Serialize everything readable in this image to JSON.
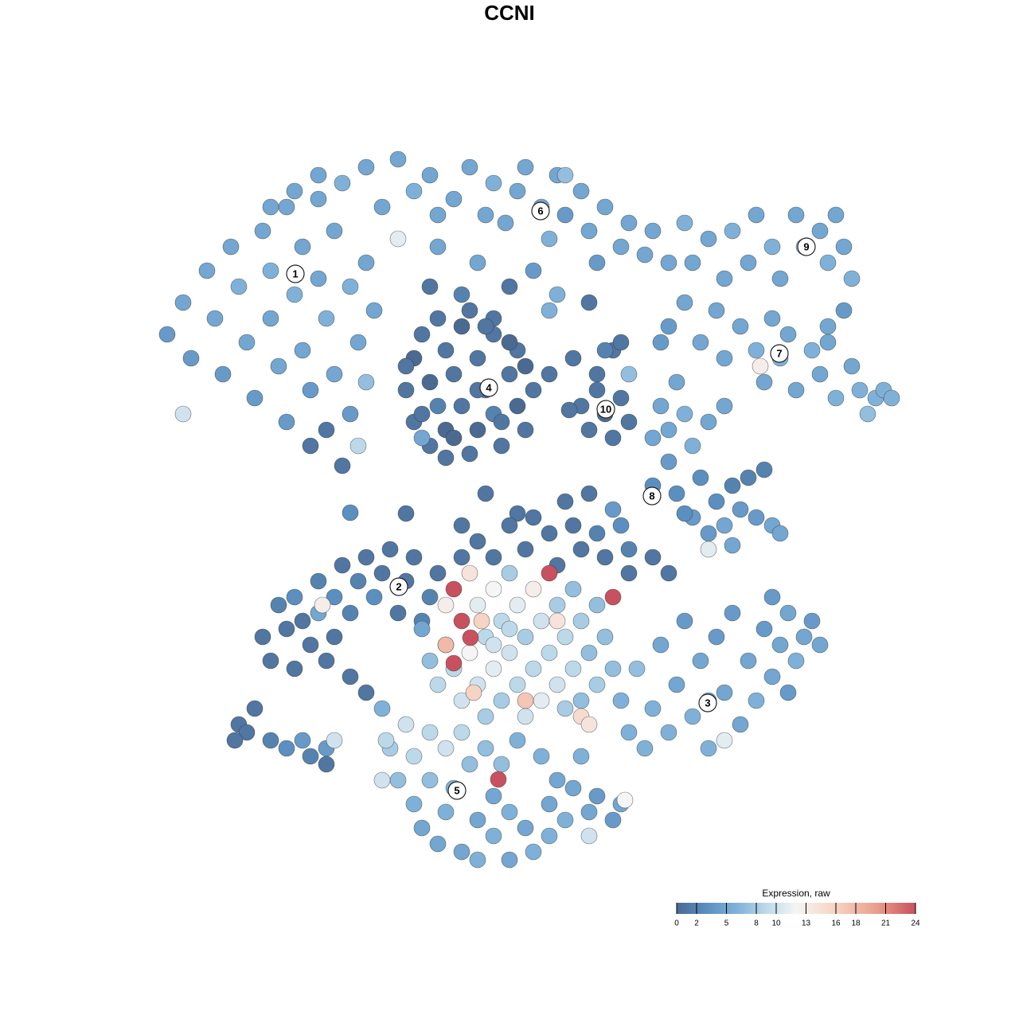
{
  "chart_data": {
    "type": "scatter",
    "title": "CCNI",
    "x": [
      -43,
      -41,
      -40,
      -38,
      -37,
      -36,
      -35,
      -34,
      -33,
      -32,
      -31,
      -30,
      -30,
      -29,
      -28,
      -28,
      -27,
      -26,
      -26,
      -25,
      -25,
      -24,
      -24,
      -23,
      -23,
      -22,
      -22,
      -21,
      -20,
      -20,
      -19,
      -19,
      -18,
      -18,
      -17,
      -41,
      -30,
      -27,
      -24,
      -21,
      -18,
      -16,
      -14,
      -12,
      -10,
      -9,
      -7,
      -5,
      -3,
      -2,
      -0.5,
      1,
      2,
      4,
      5,
      6,
      7,
      9,
      10,
      11,
      12,
      14,
      15,
      17,
      18,
      20,
      -14,
      7,
      -9,
      3,
      -4,
      6,
      5,
      -6,
      -10,
      0,
      10,
      -2,
      -13,
      -12,
      -12,
      -11,
      -10,
      -10,
      -9,
      -8,
      -8,
      -7,
      -6,
      -6,
      -5,
      -4,
      -4,
      -3,
      -2,
      -2,
      -1,
      0,
      1,
      1,
      2,
      -11,
      -8,
      3,
      -5,
      5,
      8,
      11,
      13,
      -13,
      -9,
      -7,
      -3,
      -1,
      2,
      -11,
      -4,
      0,
      9,
      10,
      11,
      12,
      13,
      14,
      15,
      15,
      12,
      7.5,
      14,
      23,
      25,
      27,
      28,
      30,
      31,
      33,
      34,
      36,
      37,
      39,
      40,
      41,
      42,
      43,
      42,
      40,
      22,
      20,
      22,
      24,
      26,
      27,
      29,
      31,
      32,
      33,
      34,
      35,
      36,
      38,
      39,
      40,
      41,
      43,
      44,
      45,
      46,
      47,
      48,
      31.5,
      21,
      19,
      19,
      20,
      22,
      23,
      25,
      27,
      20,
      18,
      21,
      24,
      26,
      28,
      30,
      32,
      23,
      25,
      27,
      29,
      31,
      33,
      34,
      28,
      25,
      22,
      18,
      -20,
      -13,
      -6,
      -3,
      1,
      -6,
      -4,
      -2,
      0,
      2,
      3,
      5,
      6,
      8,
      9,
      11,
      12,
      14,
      15,
      7,
      10,
      13,
      15,
      18,
      20,
      -31,
      -30,
      -29,
      -28,
      -27,
      -27,
      -26,
      -25,
      -24,
      -24,
      -23,
      -22,
      -22,
      -21,
      -20,
      -19,
      -18,
      -17,
      -16,
      -15,
      -14,
      -13,
      -12,
      -11,
      -10,
      -9,
      -23.5,
      -20,
      -18,
      -34,
      -33,
      -32,
      -30,
      -28,
      -26,
      -25,
      -23,
      -22,
      -23,
      -34.5,
      -11,
      -10,
      -9,
      -8,
      -8,
      -7,
      -7,
      -6,
      -6,
      -5,
      -5,
      -4,
      -4,
      -3,
      -3,
      -2,
      -2,
      -1,
      -1,
      0,
      0,
      1,
      1,
      2,
      2,
      3,
      3,
      4,
      4,
      5,
      5,
      6,
      6,
      7,
      7,
      8,
      8,
      9,
      9,
      10,
      11,
      11,
      12,
      13,
      13,
      -4.9,
      -7,
      -8,
      -4.5,
      2,
      6,
      9,
      10,
      -3.5,
      0,
      -2,
      14,
      15,
      16,
      17,
      18,
      19,
      20,
      21,
      22,
      23,
      24,
      25,
      26,
      27,
      28,
      29,
      30,
      31,
      32,
      33,
      34,
      35,
      36,
      37,
      38,
      39,
      27,
      25,
      33,
      35,
      -16,
      -15,
      -14,
      -13,
      -12,
      -12,
      -11,
      -10,
      -10,
      -9,
      -8,
      -8,
      -7,
      -6,
      -6,
      -5,
      -4,
      -4,
      -3,
      -2,
      -2,
      -1,
      0,
      0,
      1,
      -1.4,
      2,
      3,
      4,
      5,
      5,
      6,
      7,
      8,
      9,
      10,
      10,
      11,
      13,
      14,
      14.5,
      -16,
      -15.5
    ],
    "y": [
      22,
      26,
      19,
      30,
      24,
      17,
      33,
      28,
      21,
      14,
      35,
      30,
      24,
      18,
      11,
      38,
      27,
      33,
      20,
      15,
      8,
      39,
      29,
      24,
      10,
      17,
      35,
      5.5,
      28,
      12,
      21,
      8,
      31,
      16,
      25,
      12,
      38,
      40,
      42,
      41,
      43,
      38,
      44,
      40,
      42,
      37,
      39,
      43,
      37,
      41,
      36,
      40,
      43,
      38,
      34,
      42,
      37,
      40,
      35,
      31,
      38,
      33,
      36,
      32,
      35,
      31,
      34,
      42,
      33,
      30,
      31,
      27,
      25,
      27,
      28,
      28,
      26,
      24,
      15,
      19,
      11,
      22,
      16,
      8,
      13,
      20,
      10,
      17,
      23,
      13,
      7,
      19,
      10,
      15,
      22,
      12,
      8,
      17,
      13,
      20,
      10,
      9,
      6.5,
      15,
      25,
      17,
      19,
      17,
      20,
      18,
      24,
      9,
      23,
      11,
      18,
      12,
      15,
      21,
      13,
      10,
      15,
      12,
      9,
      14,
      11,
      17,
      20,
      12.5,
      21,
      31,
      34,
      29,
      35,
      31,
      37,
      33,
      29,
      37,
      33,
      35,
      31,
      37,
      33,
      29,
      25,
      23,
      36,
      23,
      26,
      21,
      25,
      19,
      23,
      20,
      16,
      24,
      19,
      22,
      15,
      20,
      17,
      21,
      14,
      18,
      15,
      12,
      14,
      15,
      14,
      18,
      16,
      21,
      13,
      10,
      12,
      8,
      11,
      13,
      6,
      3,
      2,
      4,
      1,
      3,
      4,
      5,
      -1,
      -3,
      -2,
      0,
      -1,
      -2,
      -3,
      -4.5,
      -5,
      -0.5,
      9,
      -0.4,
      -0.5,
      -2,
      2,
      -0.5,
      -6,
      -4,
      -6,
      -2,
      -5,
      -1,
      -3,
      -7,
      -2,
      -5,
      -3,
      -6,
      -2,
      -5,
      1,
      2,
      0,
      -8,
      -6,
      -8,
      -16,
      -19,
      -12,
      -15,
      -11,
      -20,
      -14,
      -17,
      -9,
      -13,
      -19,
      -11,
      -16,
      -7,
      -13,
      -9,
      -6,
      -11,
      -8,
      -5,
      -13,
      -9,
      -6,
      -14,
      -11,
      -8,
      -12,
      -21,
      -23,
      -27,
      -28,
      -25,
      -29,
      -30,
      -29,
      -31,
      -30,
      -29,
      -32,
      -29,
      -15,
      -19,
      -22,
      -17,
      -12,
      -20,
      -10,
      -14,
      -24,
      -18,
      -8,
      -12,
      -22,
      -16,
      -26,
      -10,
      -20,
      -14,
      -24,
      -18,
      -8,
      -12,
      -22,
      -16,
      -26,
      -10,
      -20,
      -14,
      -24,
      -18,
      -8,
      -12,
      -22,
      -16,
      -25,
      -10,
      -20,
      -14,
      -24,
      -18,
      -12,
      -22,
      -16,
      -11,
      -20,
      -16.1,
      -19.3,
      -17,
      -23,
      -24,
      -14,
      -26,
      -27,
      -14,
      -15,
      -17,
      -24,
      -28,
      -20,
      -30,
      -25,
      -17,
      -28,
      -22,
      -14,
      -26,
      -19,
      -30,
      -16,
      -23,
      -13,
      -27,
      -19,
      -24,
      -15,
      -21,
      -17,
      -13,
      -19,
      -16,
      -14,
      -17,
      -29,
      -24,
      -11,
      -23,
      -25,
      -30,
      -34,
      -27,
      -31,
      -37,
      -40,
      -28,
      -34,
      -42,
      -30,
      -38,
      -35,
      -43,
      -28,
      -32,
      -39,
      -44,
      -30,
      -36,
      -41,
      -32,
      -38,
      -44,
      -29,
      -33.9,
      -40,
      -43,
      -31,
      -37,
      -41,
      -34,
      -39,
      -35,
      -31,
      -38,
      -41,
      -36,
      -39,
      -37,
      -36.5,
      -34,
      -29
    ],
    "values": [
      4,
      5,
      4,
      5,
      5,
      4,
      5,
      6,
      5,
      4,
      5,
      6,
      5,
      5,
      4,
      5,
      6,
      5,
      5,
      4,
      1,
      5,
      5,
      6,
      1,
      5,
      5,
      1,
      6,
      4,
      5,
      9,
      5,
      7,
      5,
      10,
      5,
      5,
      5,
      6,
      5,
      5,
      5,
      6,
      5,
      5,
      5,
      5,
      5,
      6,
      5,
      5,
      5,
      5,
      6,
      5,
      4,
      5,
      5,
      4,
      5,
      5,
      5,
      5,
      5,
      5,
      11,
      7,
      5,
      4,
      5,
      6,
      6,
      2,
      1,
      1,
      1,
      1,
      1,
      0,
      1,
      1,
      0,
      1,
      2,
      1,
      0,
      1,
      0,
      1,
      1,
      1,
      0,
      1,
      1,
      2,
      1,
      1,
      0,
      1,
      1,
      5,
      1,
      1,
      1,
      1,
      1,
      1,
      1,
      1,
      1,
      0,
      1,
      1,
      0,
      1,
      1,
      0,
      1,
      1,
      1,
      0,
      1,
      1,
      1,
      7,
      2,
      1,
      1,
      5,
      5,
      5,
      6,
      5,
      5,
      6,
      5,
      5,
      7,
      5,
      6,
      5,
      5,
      6,
      4,
      5,
      6,
      4,
      5,
      5,
      5,
      5,
      5,
      6,
      5,
      5,
      6,
      5,
      5,
      6,
      5,
      5,
      6,
      5,
      6,
      7,
      6,
      6,
      6,
      13,
      5,
      4,
      5,
      5,
      6,
      6,
      5,
      5,
      4,
      3,
      3,
      3,
      3,
      2,
      2,
      2,
      4,
      4,
      5,
      4,
      4,
      5,
      5,
      5,
      11,
      3,
      5,
      3,
      1,
      1,
      1,
      1,
      1,
      1,
      1,
      1,
      1,
      1,
      1,
      1,
      1,
      1,
      2,
      1,
      3,
      2,
      1,
      1,
      4,
      1,
      1,
      1,
      1,
      1,
      2,
      1,
      3,
      1,
      1,
      1,
      2,
      5,
      1,
      3,
      1,
      1,
      2,
      2,
      1,
      3,
      1,
      1,
      1,
      1,
      1,
      2,
      2,
      1,
      13,
      1,
      1,
      1,
      1,
      1,
      2,
      3,
      4,
      2,
      4,
      10,
      1,
      1,
      5,
      7,
      9,
      11,
      13,
      9,
      24,
      24,
      10,
      12,
      14,
      11,
      10,
      9,
      8,
      12,
      11,
      9,
      8,
      10,
      8,
      11,
      9,
      8,
      10,
      13,
      9,
      10,
      11,
      9,
      24,
      8,
      10,
      9,
      8,
      7,
      9,
      8,
      7,
      7,
      7,
      8,
      7,
      24,
      7,
      24,
      24,
      18,
      16,
      17,
      14,
      15,
      14,
      16,
      9,
      10,
      6,
      6,
      7,
      6,
      6,
      5,
      6,
      5,
      4,
      6,
      5,
      6,
      4,
      5,
      4,
      5,
      5,
      6,
      4,
      5,
      5,
      5,
      6,
      5,
      4,
      5,
      11,
      5,
      4,
      4,
      6,
      8,
      7,
      10,
      9,
      6,
      5,
      9,
      7,
      5,
      10,
      6,
      6,
      5,
      9,
      7,
      5,
      6,
      7,
      5,
      6,
      7,
      6,
      5,
      6,
      24,
      5,
      6,
      6,
      5,
      6,
      5,
      6,
      5,
      6,
      5,
      10,
      4,
      4,
      5,
      12,
      10,
      9
    ],
    "annotations": [
      {
        "text": "1",
        "x": -26.9,
        "y": 29.6
      },
      {
        "text": "2",
        "x": -13.9,
        "y": -9.7
      },
      {
        "text": "3",
        "x": 24.9,
        "y": -24.3
      },
      {
        "text": "4",
        "x": -2.6,
        "y": 15.3
      },
      {
        "text": "5",
        "x": -6.6,
        "y": -35.3
      },
      {
        "text": "6",
        "x": 3.9,
        "y": 37.5
      },
      {
        "text": "7",
        "x": 33.9,
        "y": 19.6
      },
      {
        "text": "8",
        "x": 17.9,
        "y": 1.7
      },
      {
        "text": "9",
        "x": 37.3,
        "y": 33
      },
      {
        "text": "10",
        "x": 12.1,
        "y": 12.6
      }
    ],
    "colorbar": {
      "title": "Expression, raw",
      "lim": [
        0,
        24
      ],
      "ticks": [
        0,
        2,
        5,
        8,
        10,
        13,
        16,
        18,
        21,
        24
      ],
      "colorscale": [
        [
          0,
          "#4a6a91"
        ],
        [
          3,
          "#5b8fc0"
        ],
        [
          6,
          "#7fb1d8"
        ],
        [
          9,
          "#bcd9ea"
        ],
        [
          12,
          "#f5f5f5"
        ],
        [
          16,
          "#f6d3c3"
        ],
        [
          20,
          "#eaa08c"
        ],
        [
          24,
          "#c8515f"
        ]
      ]
    }
  }
}
